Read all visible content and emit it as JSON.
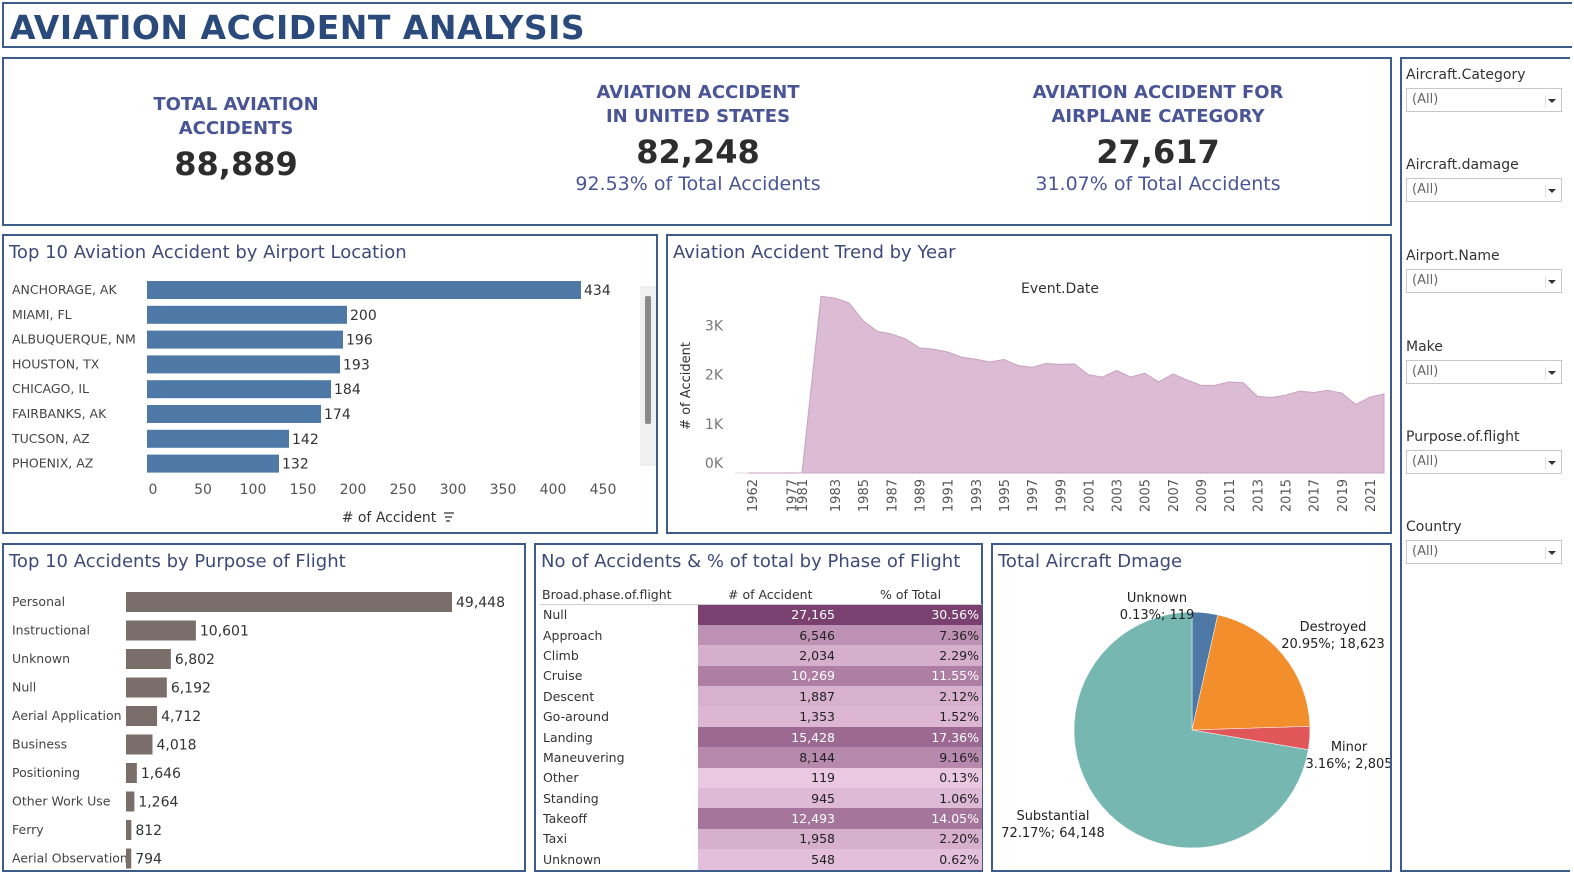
{
  "header": {
    "title": "AVIATION ACCIDENT ANALYSIS"
  },
  "kpis": [
    {
      "title_line1": "TOTAL AVIATION",
      "title_line2": "ACCIDENTS",
      "value": "88,889",
      "pct": ""
    },
    {
      "title_line1": "AVIATION ACCIDENT",
      "title_line2": "IN UNITED STATES",
      "value": "82,248",
      "pct": "92.53% of Total Accidents"
    },
    {
      "title_line1": "AVIATION ACCIDENT FOR",
      "title_line2": "AIRPLANE CATEGORY",
      "value": "27,617",
      "pct": "31.07% of Total Accidents"
    }
  ],
  "filters": [
    {
      "label": "Aircraft.Category",
      "value": "(All)"
    },
    {
      "label": "Aircraft.damage",
      "value": "(All)"
    },
    {
      "label": "Airport.Name",
      "value": "(All)"
    },
    {
      "label": "Make",
      "value": "(All)"
    },
    {
      "label": "Purpose.of.flight",
      "value": "(All)"
    },
    {
      "label": "Country",
      "value": "(All)"
    }
  ],
  "colors": {
    "location_bar": "#4e79a7",
    "purpose_bar": "#7a6e6b",
    "area_fill": "#dbbcd4",
    "pie_unknown": "#4e79a7",
    "pie_destroyed": "#f28e2b",
    "pie_minor": "#e15759",
    "pie_substantial": "#76b7b2"
  },
  "chart_data": [
    {
      "type": "bar",
      "title": "Top 10 Aviation Accident by Airport Location",
      "categories": [
        "ANCHORAGE, AK",
        "MIAMI, FL",
        "ALBUQUERQUE, NM",
        "HOUSTON, TX",
        "CHICAGO, IL",
        "FAIRBANKS, AK",
        "TUCSON, AZ",
        "PHOENIX, AZ"
      ],
      "values": [
        434,
        200,
        196,
        193,
        184,
        174,
        142,
        132
      ],
      "xlabel": "# of Accident",
      "xticks": [
        "0",
        "50",
        "100",
        "150",
        "200",
        "250",
        "300",
        "350",
        "400",
        "450"
      ],
      "xlim": [
        0,
        470
      ]
    },
    {
      "type": "area",
      "title": "Aviation Accident Trend by Year",
      "xlabel": "Event.Date",
      "ylabel": "# of Accident",
      "yticks": [
        "0K",
        "1K",
        "2K",
        "3K"
      ],
      "ylim": [
        0,
        3600
      ],
      "xticks": [
        "1962",
        "1977",
        "1981",
        "1983",
        "1985",
        "1987",
        "1989",
        "1991",
        "1993",
        "1995",
        "1997",
        "1999",
        "2001",
        "2003",
        "2005",
        "2007",
        "2009",
        "2011",
        "2013",
        "2015",
        "2017",
        "2019",
        "2021"
      ],
      "x": [
        "1948",
        "1962",
        "1974",
        "1977",
        "1979",
        "1981",
        "1982",
        "1983",
        "1984",
        "1985",
        "1986",
        "1987",
        "1988",
        "1989",
        "1990",
        "1991",
        "1992",
        "1993",
        "1994",
        "1995",
        "1996",
        "1997",
        "1998",
        "1999",
        "2000",
        "2001",
        "2002",
        "2003",
        "2004",
        "2005",
        "2006",
        "2007",
        "2008",
        "2009",
        "2010",
        "2011",
        "2012",
        "2013",
        "2014",
        "2015",
        "2016",
        "2017",
        "2018",
        "2019",
        "2020",
        "2021",
        "2022"
      ],
      "values": [
        1,
        1,
        1,
        2,
        1,
        1,
        3593,
        3556,
        3457,
        3096,
        2880,
        2828,
        2730,
        2544,
        2518,
        2462,
        2355,
        2313,
        2257,
        2309,
        2187,
        2148,
        2226,
        2209,
        2220,
        1999,
        1951,
        2085,
        1952,
        2031,
        1851,
        2016,
        1893,
        1783,
        1786,
        1850,
        1835,
        1561,
        1535,
        1582,
        1664,
        1638,
        1681,
        1624,
        1392,
        1545,
        1607
      ]
    },
    {
      "type": "bar",
      "title": "Top 10 Accidents by Purpose of Flight",
      "categories": [
        "Personal",
        "Instructional",
        "Unknown",
        "Null",
        "Aerial Application",
        "Business",
        "Positioning",
        "Other Work Use",
        "Ferry",
        "Aerial Observation"
      ],
      "values": [
        49448,
        10601,
        6802,
        6192,
        4712,
        4018,
        1646,
        1264,
        812,
        794
      ],
      "labels": [
        "49,448",
        "10,601",
        "6,802",
        "6,192",
        "4,712",
        "4,018",
        "1,646",
        "1,264",
        "812",
        "794"
      ]
    },
    {
      "type": "table",
      "title": "No of Accidents & % of total by Phase of Flight",
      "columns": [
        "Broad.phase.of.flight",
        "# of Accident",
        "% of Total"
      ],
      "rows": [
        {
          "phase": "Null",
          "count": "27,165",
          "pct": "30.56%",
          "value": 30.56
        },
        {
          "phase": "Approach",
          "count": "6,546",
          "pct": "7.36%",
          "value": 7.36
        },
        {
          "phase": "Climb",
          "count": "2,034",
          "pct": "2.29%",
          "value": 2.29
        },
        {
          "phase": "Cruise",
          "count": "10,269",
          "pct": "11.55%",
          "value": 11.55
        },
        {
          "phase": "Descent",
          "count": "1,887",
          "pct": "2.12%",
          "value": 2.12
        },
        {
          "phase": "Go-around",
          "count": "1,353",
          "pct": "1.52%",
          "value": 1.52
        },
        {
          "phase": "Landing",
          "count": "15,428",
          "pct": "17.36%",
          "value": 17.36
        },
        {
          "phase": "Maneuvering",
          "count": "8,144",
          "pct": "9.16%",
          "value": 9.16
        },
        {
          "phase": "Other",
          "count": "119",
          "pct": "0.13%",
          "value": 0.13
        },
        {
          "phase": "Standing",
          "count": "945",
          "pct": "1.06%",
          "value": 1.06
        },
        {
          "phase": "Takeoff",
          "count": "12,493",
          "pct": "14.05%",
          "value": 14.05
        },
        {
          "phase": "Taxi",
          "count": "1,958",
          "pct": "2.20%",
          "value": 2.2
        },
        {
          "phase": "Unknown",
          "count": "548",
          "pct": "0.62%",
          "value": 0.62
        }
      ]
    },
    {
      "type": "pie",
      "title": "Total Aircraft Dmage",
      "slices": [
        {
          "name": "Unknown",
          "label": "0.13%; 119",
          "value": 119,
          "pct": 0.13
        },
        {
          "name": "Destroyed",
          "label": "20.95%; 18,623",
          "value": 18623,
          "pct": 20.95
        },
        {
          "name": "Minor",
          "label": "3.16%; 2,805",
          "value": 2805,
          "pct": 3.16
        },
        {
          "name": "Substantial",
          "label": "72.17%; 64,148",
          "value": 64148,
          "pct": 72.17
        }
      ]
    }
  ]
}
